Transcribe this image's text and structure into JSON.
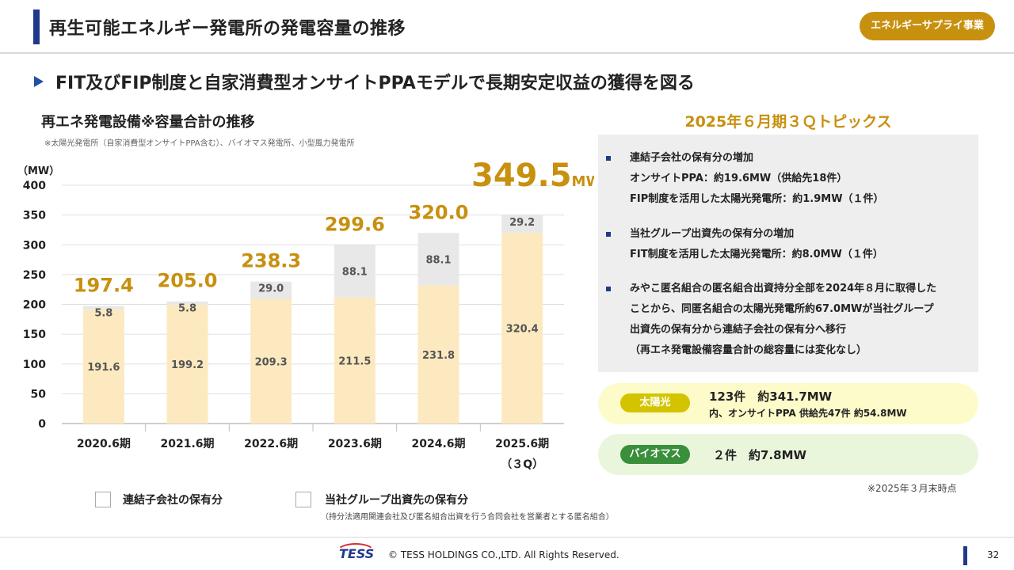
{
  "header": {
    "title": "再生可能エネルギー発電所の発電容量の推移",
    "badge": "エネルギーサプライ事業"
  },
  "subheading": "FIT及びFIP制度と自家消費型オンサイトPPAモデルで長期安定収益の獲得を図る",
  "chart_section": {
    "title": "再エネ発電設備※容量合計の推移",
    "note": "※太陽光発電所（自家消費型オンサイトPPA含む）、バイオマス発電所、小型風力発電所",
    "unit_label": "（MW）",
    "total_highlight_value": "349.5",
    "total_highlight_unit": "MW",
    "legend": [
      {
        "label": "連結子会社の保有分",
        "color": "#fde9bf"
      },
      {
        "label": "当社グループ出資先の保有分",
        "color": "#e8e8e8"
      }
    ],
    "legend_note": "（持分法適用関連会社及び匿名組合出資を行う合同会社を営業者とする匿名組合）"
  },
  "chart_data": {
    "type": "bar",
    "stacked": true,
    "categories": [
      "2020.6期",
      "2021.6期",
      "2022.6期",
      "2023.6期",
      "2024.6期",
      "2025.6期"
    ],
    "category_sublabels": [
      "",
      "",
      "",
      "",
      "",
      "（３Q）"
    ],
    "series": [
      {
        "name": "連結子会社の保有分",
        "values": [
          191.6,
          199.2,
          209.3,
          211.5,
          231.8,
          320.4
        ],
        "color": "#fde9bf"
      },
      {
        "name": "当社グループ出資先の保有分",
        "values": [
          5.8,
          5.8,
          29.0,
          88.1,
          88.1,
          29.2
        ],
        "color": "#e8e8e8"
      }
    ],
    "totals": [
      "197.4",
      "205.0",
      "238.3",
      "299.6",
      "320.0",
      "349.5"
    ],
    "ylabel": "（MW）",
    "ylim": [
      0,
      400
    ],
    "yticks": [
      0,
      50,
      100,
      150,
      200,
      250,
      300,
      350,
      400
    ],
    "grid": true,
    "total_color": "#c8900f"
  },
  "topics": {
    "title": "2025年６月期３Ｑトピックス",
    "items": [
      {
        "text": "連結子会社の保有分の増加\nオンサイトPPA：約19.6MW（供給先18件）\nFIP制度を活用した太陽光発電所：約1.9MW（１件）"
      },
      {
        "text": "当社グループ出資先の保有分の増加\nFIT制度を活用した太陽光発電所：約8.0MW（１件）"
      },
      {
        "text": "みやこ匿名組合の匿名組合出資持分全部を2024年８月に取得した\nことから、同匿名組合の太陽光発電所約67.0MWが当社グループ\n出資先の保有分から連結子会社の保有分へ移行\n（再エネ発電設備容量合計の総容量には変化なし）"
      }
    ]
  },
  "summary": {
    "solar": {
      "label": "太陽光",
      "main": "123件　約341.7MW",
      "sub": "内、オンサイトPPA 供給先47件 約54.8MW",
      "color": "#d4c400",
      "bg": "#fdfbc9"
    },
    "biomass": {
      "label": "バイオマス",
      "main": "２件　約7.8MW",
      "color": "#3a8f3a",
      "bg": "#eaf6dc"
    },
    "as_of": "※2025年３月末時点"
  },
  "footer": {
    "logo": "TESS",
    "copyright": "© TESS HOLDINGS CO.,LTD. All Rights Reserved.",
    "page": "32"
  }
}
